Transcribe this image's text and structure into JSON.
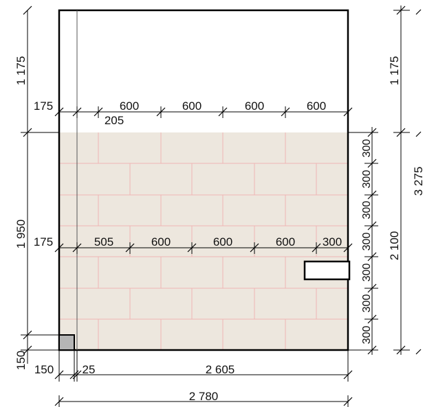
{
  "colors": {
    "tile_fill": "#ede7de",
    "tile_joint": "#f0b4b4",
    "outline": "#000000",
    "corner_box": "#b5b5b5"
  },
  "top_row_dims": [
    "175",
    "600",
    "600",
    "600",
    "600"
  ],
  "top_row_sub": "205",
  "mid_row_dims": [
    "175",
    "505",
    "600",
    "600",
    "600",
    "300"
  ],
  "left_dims": [
    "1 175",
    "1 950",
    "150"
  ],
  "right_inner_dims": [
    "300",
    "300",
    "300",
    "300",
    "300",
    "300",
    "300"
  ],
  "right_dims": [
    "1 175",
    "3 275",
    "2 100"
  ],
  "bottom_row1": [
    "150",
    "25",
    "2 605"
  ],
  "bottom_row2": "2 780"
}
